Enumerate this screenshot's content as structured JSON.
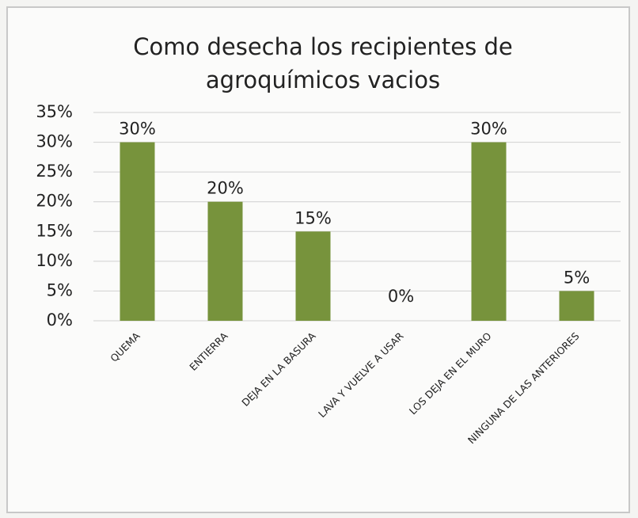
{
  "chart_data": {
    "type": "bar",
    "title": "Como desecha los recipientes de agroquímicos vacios",
    "categories": [
      "QUEMA",
      "ENTIERRA",
      "DEJA EN LA BASURA",
      "LAVA Y VUELVE A USAR",
      "LOS DEJA EN EL MURO",
      "NINGUNA DE LAS ANTERIORES"
    ],
    "values": [
      30,
      20,
      15,
      0,
      30,
      5
    ],
    "value_labels": [
      "30%",
      "20%",
      "15%",
      "0%",
      "30%",
      "5%"
    ],
    "color": "#77933c",
    "ylim": [
      0,
      35
    ],
    "yticks": [
      {
        "value": 0,
        "label": "0%"
      },
      {
        "value": 5,
        "label": "5%"
      },
      {
        "value": 10,
        "label": "10%"
      },
      {
        "value": 15,
        "label": "15%"
      },
      {
        "value": 20,
        "label": "20%"
      },
      {
        "value": 25,
        "label": "25%"
      },
      {
        "value": 30,
        "label": "30%"
      },
      {
        "value": 35,
        "label": "35%"
      }
    ],
    "grid": true
  }
}
